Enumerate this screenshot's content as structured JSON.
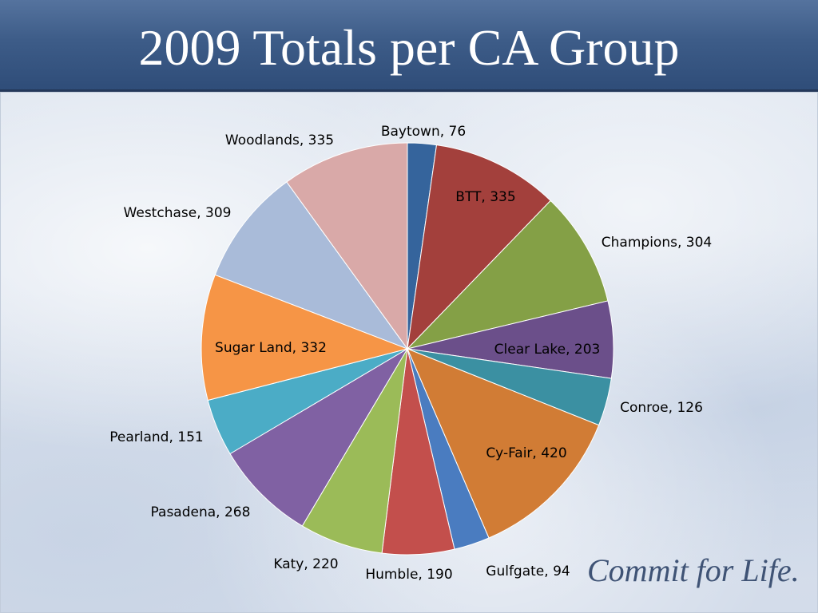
{
  "slide": {
    "title": "2009 Totals per CA Group",
    "logo_text": "Commit for Life."
  },
  "chart_data": {
    "type": "pie",
    "title": "",
    "start_angle_deg": 0,
    "direction": "clockwise",
    "slices": [
      {
        "category": "Baytown",
        "value": 76,
        "label": "Baytown, 76",
        "color": "#35649c"
      },
      {
        "category": "BTT",
        "value": 335,
        "label": "BTT, 335",
        "color": "#a3403c"
      },
      {
        "category": "Champions",
        "value": 304,
        "label": "Champions, 304",
        "color": "#84a046"
      },
      {
        "category": "Clear Lake",
        "value": 203,
        "label": "Clear Lake, 203",
        "color": "#6b4f8a"
      },
      {
        "category": "Conroe",
        "value": 126,
        "label": "Conroe, 126",
        "color": "#3b90a2"
      },
      {
        "category": "Cy-Fair",
        "value": 420,
        "label": "Cy-Fair, 420",
        "color": "#d17c35"
      },
      {
        "category": "Gulfgate",
        "value": 94,
        "label": "Gulfgate, 94",
        "color": "#4a7cc0"
      },
      {
        "category": "Humble",
        "value": 190,
        "label": "Humble, 190",
        "color": "#c34f4c"
      },
      {
        "category": "Katy",
        "value": 220,
        "label": "Katy, 220",
        "color": "#9bbb58"
      },
      {
        "category": "Pasadena",
        "value": 268,
        "label": "Pasadena, 268",
        "color": "#8061a3"
      },
      {
        "category": "Pearland",
        "value": 151,
        "label": "Pearland, 151",
        "color": "#4bacc6"
      },
      {
        "category": "Sugar Land",
        "value": 332,
        "label": "Sugar Land, 332",
        "color": "#f69546"
      },
      {
        "category": "Westchase",
        "value": 309,
        "label": "Westchase, 309",
        "color": "#a9bbd9"
      },
      {
        "category": "Woodlands",
        "value": 335,
        "label": "Woodlands, 335",
        "color": "#d9a9a8"
      }
    ]
  }
}
